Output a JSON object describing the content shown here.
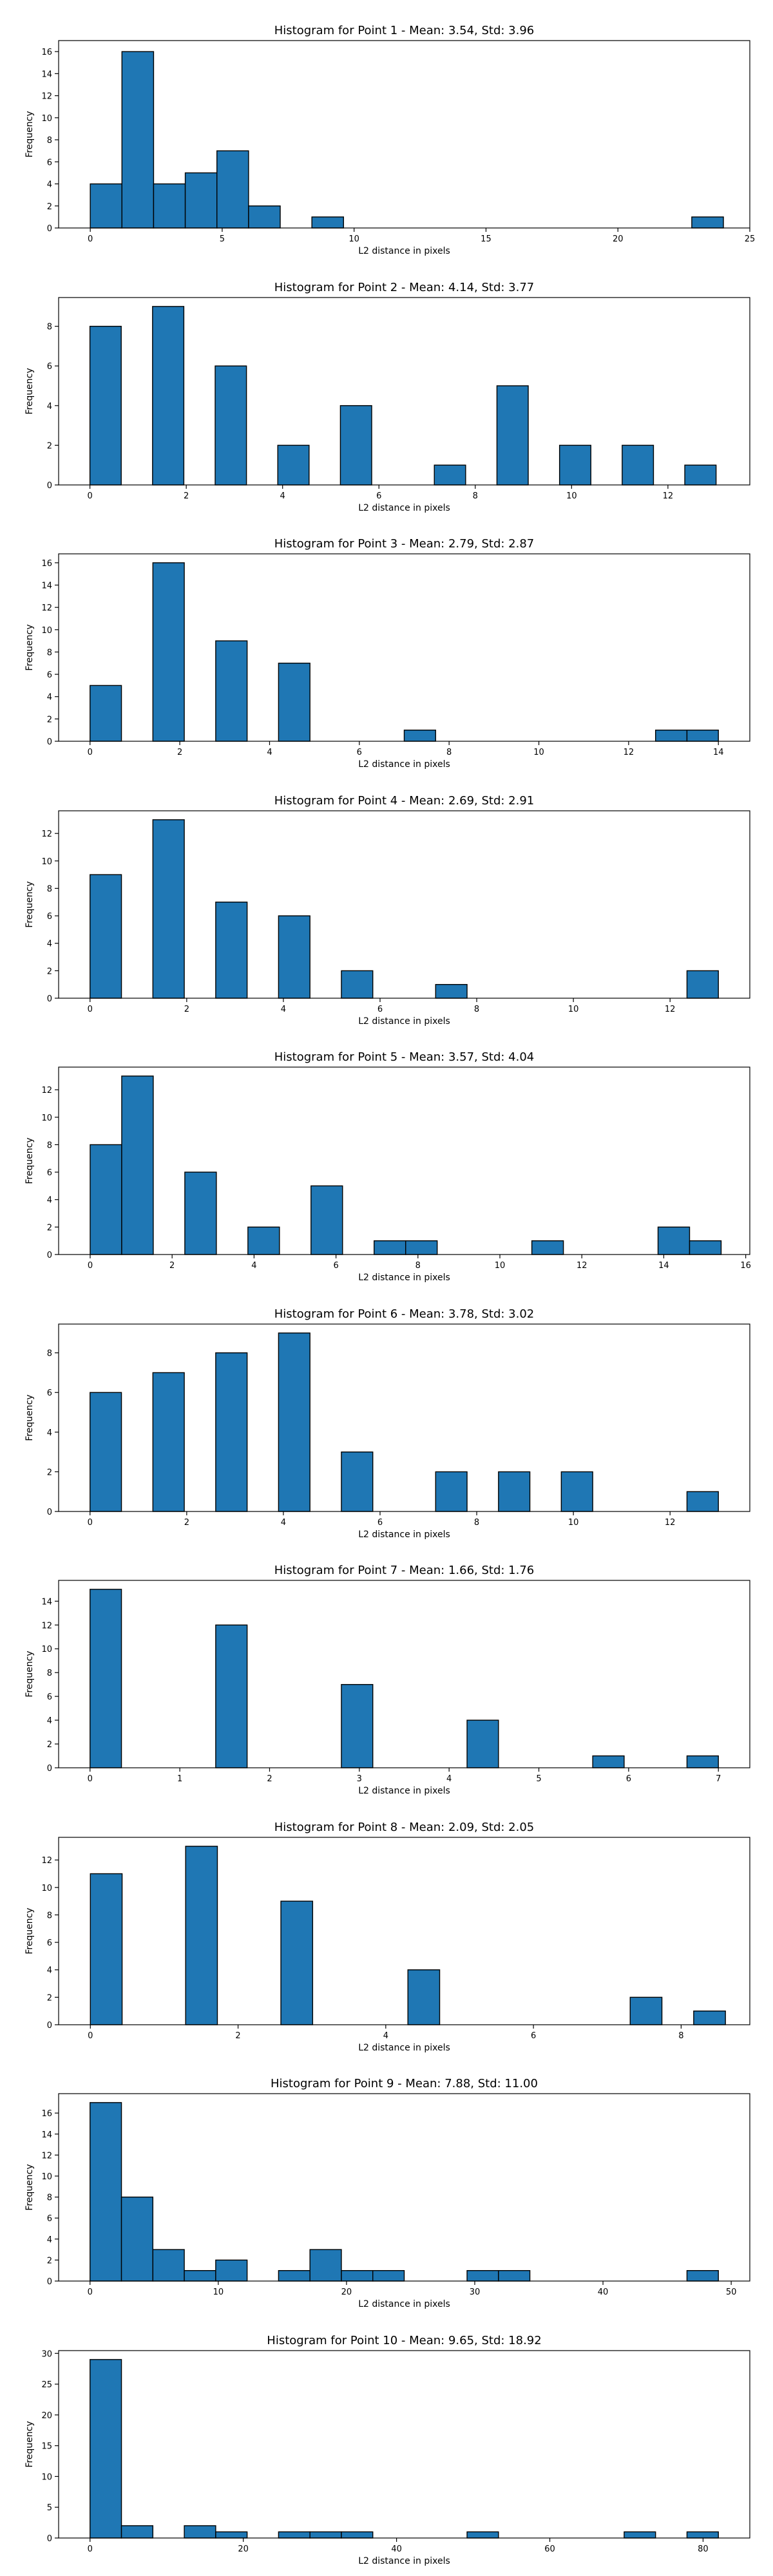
{
  "chart_data": [
    {
      "type": "bar",
      "title": "Histogram for Point 1 - Mean: 3.54, Std: 3.96",
      "xlabel": "L2 distance in pixels",
      "ylabel": "Frequency",
      "xlim": [
        -1.2,
        25.0
      ],
      "ylim": [
        0,
        17
      ],
      "xticks": [
        0,
        5,
        10,
        15,
        20,
        25
      ],
      "xtick_labels": [
        "0",
        "5",
        "10",
        "15",
        "20",
        "25"
      ],
      "yticks": [
        0,
        2,
        4,
        6,
        8,
        10,
        12,
        14,
        16
      ],
      "ytick_labels": [
        "0",
        "2",
        "4",
        "6",
        "8",
        "10",
        "12",
        "14",
        "16"
      ],
      "bins": [
        {
          "x0": 0.0,
          "x1": 1.2,
          "count": 4
        },
        {
          "x0": 1.2,
          "x1": 2.4,
          "count": 16
        },
        {
          "x0": 2.4,
          "x1": 3.6,
          "count": 4
        },
        {
          "x0": 3.6,
          "x1": 4.8,
          "count": 5
        },
        {
          "x0": 4.8,
          "x1": 6.0,
          "count": 7
        },
        {
          "x0": 6.0,
          "x1": 7.2,
          "count": 2
        },
        {
          "x0": 8.4,
          "x1": 9.6,
          "count": 1
        },
        {
          "x0": 22.8,
          "x1": 24.0,
          "count": 1
        }
      ]
    },
    {
      "type": "bar",
      "title": "Histogram for Point 2 - Mean: 4.14, Std: 3.77",
      "xlabel": "L2 distance in pixels",
      "ylabel": "Frequency",
      "xlim": [
        -0.65,
        13.7
      ],
      "ylim": [
        0,
        9.45
      ],
      "xticks": [
        0,
        2,
        4,
        6,
        8,
        10,
        12
      ],
      "xtick_labels": [
        "0",
        "2",
        "4",
        "6",
        "8",
        "10",
        "12"
      ],
      "yticks": [
        0,
        2,
        4,
        6,
        8
      ],
      "ytick_labels": [
        "0",
        "2",
        "4",
        "6",
        "8"
      ],
      "bins": [
        {
          "x0": 0.0,
          "x1": 0.65,
          "count": 8
        },
        {
          "x0": 1.3,
          "x1": 1.95,
          "count": 9
        },
        {
          "x0": 2.6,
          "x1": 3.25,
          "count": 6
        },
        {
          "x0": 3.9,
          "x1": 4.55,
          "count": 2
        },
        {
          "x0": 5.2,
          "x1": 5.85,
          "count": 4
        },
        {
          "x0": 7.15,
          "x1": 7.8,
          "count": 1
        },
        {
          "x0": 8.45,
          "x1": 9.1,
          "count": 5
        },
        {
          "x0": 9.75,
          "x1": 10.4,
          "count": 2
        },
        {
          "x0": 11.05,
          "x1": 11.7,
          "count": 2
        },
        {
          "x0": 12.35,
          "x1": 13.0,
          "count": 1
        }
      ]
    },
    {
      "type": "bar",
      "title": "Histogram for Point 3 - Mean: 2.79, Std: 2.87",
      "xlabel": "L2 distance in pixels",
      "ylabel": "Frequency",
      "xlim": [
        -0.7,
        14.7
      ],
      "ylim": [
        0,
        16.8
      ],
      "xticks": [
        0,
        2,
        4,
        6,
        8,
        10,
        12,
        14
      ],
      "xtick_labels": [
        "0",
        "2",
        "4",
        "6",
        "8",
        "10",
        "12",
        "14"
      ],
      "yticks": [
        0,
        2,
        4,
        6,
        8,
        10,
        12,
        14,
        16
      ],
      "ytick_labels": [
        "0",
        "2",
        "4",
        "6",
        "8",
        "10",
        "12",
        "14",
        "16"
      ],
      "bins": [
        {
          "x0": 0.0,
          "x1": 0.7,
          "count": 5
        },
        {
          "x0": 1.4,
          "x1": 2.1,
          "count": 16
        },
        {
          "x0": 2.8,
          "x1": 3.5,
          "count": 9
        },
        {
          "x0": 3.5,
          "x1": 4.2,
          "count": 0
        },
        {
          "x0": 4.2,
          "x1": 4.9,
          "count": 7
        },
        {
          "x0": 7.0,
          "x1": 7.7,
          "count": 1
        },
        {
          "x0": 12.6,
          "x1": 13.3,
          "count": 1
        },
        {
          "x0": 13.3,
          "x1": 14.0,
          "count": 1
        }
      ]
    },
    {
      "type": "bar",
      "title": "Histogram for Point 4 - Mean: 2.69, Std: 2.91",
      "xlabel": "L2 distance in pixels",
      "ylabel": "Frequency",
      "xlim": [
        -0.65,
        13.65
      ],
      "ylim": [
        0,
        13.65
      ],
      "xticks": [
        0,
        2,
        4,
        6,
        8,
        10,
        12
      ],
      "xtick_labels": [
        "0",
        "2",
        "4",
        "6",
        "8",
        "10",
        "12"
      ],
      "yticks": [
        0,
        2,
        4,
        6,
        8,
        10,
        12
      ],
      "ytick_labels": [
        "0",
        "2",
        "4",
        "6",
        "8",
        "10",
        "12"
      ],
      "bins": [
        {
          "x0": 0.0,
          "x1": 0.65,
          "count": 9
        },
        {
          "x0": 1.3,
          "x1": 1.95,
          "count": 13
        },
        {
          "x0": 2.6,
          "x1": 3.25,
          "count": 7
        },
        {
          "x0": 3.9,
          "x1": 4.55,
          "count": 6
        },
        {
          "x0": 5.2,
          "x1": 5.85,
          "count": 2
        },
        {
          "x0": 7.15,
          "x1": 7.8,
          "count": 1
        },
        {
          "x0": 12.35,
          "x1": 13.0,
          "count": 2
        }
      ]
    },
    {
      "type": "bar",
      "title": "Histogram for Point 5 - Mean: 3.57, Std: 4.04",
      "xlabel": "L2 distance in pixels",
      "ylabel": "Frequency",
      "xlim": [
        -0.77,
        16.1
      ],
      "ylim": [
        0,
        13.65
      ],
      "xticks": [
        0,
        2,
        4,
        6,
        8,
        10,
        12,
        14,
        16
      ],
      "xtick_labels": [
        "0",
        "2",
        "4",
        "6",
        "8",
        "10",
        "12",
        "14",
        "16"
      ],
      "yticks": [
        0,
        2,
        4,
        6,
        8,
        10,
        12
      ],
      "ytick_labels": [
        "0",
        "2",
        "4",
        "6",
        "8",
        "10",
        "12"
      ],
      "bins": [
        {
          "x0": 0.0,
          "x1": 0.77,
          "count": 8
        },
        {
          "x0": 0.77,
          "x1": 1.54,
          "count": 13
        },
        {
          "x0": 2.31,
          "x1": 3.08,
          "count": 6
        },
        {
          "x0": 3.85,
          "x1": 4.62,
          "count": 2
        },
        {
          "x0": 5.39,
          "x1": 6.16,
          "count": 5
        },
        {
          "x0": 6.93,
          "x1": 7.7,
          "count": 1
        },
        {
          "x0": 7.7,
          "x1": 8.47,
          "count": 1
        },
        {
          "x0": 10.78,
          "x1": 11.55,
          "count": 1
        },
        {
          "x0": 13.86,
          "x1": 14.63,
          "count": 2
        },
        {
          "x0": 14.63,
          "x1": 15.4,
          "count": 1
        }
      ]
    },
    {
      "type": "bar",
      "title": "Histogram for Point 6 - Mean: 3.78, Std: 3.02",
      "xlabel": "L2 distance in pixels",
      "ylabel": "Frequency",
      "xlim": [
        -0.65,
        13.65
      ],
      "ylim": [
        0,
        9.45
      ],
      "xticks": [
        0,
        2,
        4,
        6,
        8,
        10,
        12
      ],
      "xtick_labels": [
        "0",
        "2",
        "4",
        "6",
        "8",
        "10",
        "12"
      ],
      "yticks": [
        0,
        2,
        4,
        6,
        8
      ],
      "ytick_labels": [
        "0",
        "2",
        "4",
        "6",
        "8"
      ],
      "bins": [
        {
          "x0": 0.0,
          "x1": 0.65,
          "count": 6
        },
        {
          "x0": 1.3,
          "x1": 1.95,
          "count": 7
        },
        {
          "x0": 2.6,
          "x1": 3.25,
          "count": 8
        },
        {
          "x0": 3.9,
          "x1": 4.55,
          "count": 9
        },
        {
          "x0": 5.2,
          "x1": 5.85,
          "count": 3
        },
        {
          "x0": 7.15,
          "x1": 7.8,
          "count": 2
        },
        {
          "x0": 8.45,
          "x1": 9.1,
          "count": 2
        },
        {
          "x0": 9.75,
          "x1": 10.4,
          "count": 2
        },
        {
          "x0": 12.35,
          "x1": 13.0,
          "count": 1
        }
      ]
    },
    {
      "type": "bar",
      "title": "Histogram for Point 7 - Mean: 1.66, Std: 1.76",
      "xlabel": "L2 distance in pixels",
      "ylabel": "Frequency",
      "xlim": [
        -0.35,
        7.35
      ],
      "ylim": [
        0,
        15.75
      ],
      "xticks": [
        0,
        1,
        2,
        3,
        4,
        5,
        6,
        7
      ],
      "xtick_labels": [
        "0",
        "1",
        "2",
        "3",
        "4",
        "5",
        "6",
        "7"
      ],
      "yticks": [
        0,
        2,
        4,
        6,
        8,
        10,
        12,
        14
      ],
      "ytick_labels": [
        "0",
        "2",
        "4",
        "6",
        "8",
        "10",
        "12",
        "14"
      ],
      "bins": [
        {
          "x0": 0.0,
          "x1": 0.35,
          "count": 15
        },
        {
          "x0": 1.4,
          "x1": 1.75,
          "count": 12
        },
        {
          "x0": 2.8,
          "x1": 3.15,
          "count": 7
        },
        {
          "x0": 4.2,
          "x1": 4.55,
          "count": 4
        },
        {
          "x0": 5.6,
          "x1": 5.95,
          "count": 1
        },
        {
          "x0": 6.65,
          "x1": 7.0,
          "count": 1
        }
      ]
    },
    {
      "type": "bar",
      "title": "Histogram for Point 8 - Mean: 2.09, Std: 2.05",
      "xlabel": "L2 distance in pixels",
      "ylabel": "Frequency",
      "xlim": [
        -0.43,
        8.93
      ],
      "ylim": [
        0,
        13.65
      ],
      "xticks": [
        0,
        2,
        4,
        6,
        8
      ],
      "xtick_labels": [
        "0",
        "2",
        "4",
        "6",
        "8"
      ],
      "yticks": [
        0,
        2,
        4,
        6,
        8,
        10,
        12
      ],
      "ytick_labels": [
        "0",
        "2",
        "4",
        "6",
        "8",
        "10",
        "12"
      ],
      "bins": [
        {
          "x0": 0.0,
          "x1": 0.43,
          "count": 11
        },
        {
          "x0": 1.29,
          "x1": 1.72,
          "count": 13
        },
        {
          "x0": 2.58,
          "x1": 3.01,
          "count": 9
        },
        {
          "x0": 4.3,
          "x1": 4.73,
          "count": 4
        },
        {
          "x0": 7.31,
          "x1": 7.74,
          "count": 2
        },
        {
          "x0": 8.17,
          "x1": 8.6,
          "count": 1
        }
      ]
    },
    {
      "type": "bar",
      "title": "Histogram for Point 9 - Mean: 7.88, Std: 11.00",
      "xlabel": "L2 distance in pixels",
      "ylabel": "Frequency",
      "xlim": [
        -2.45,
        51.45
      ],
      "ylim": [
        0,
        17.85
      ],
      "xticks": [
        0,
        10,
        20,
        30,
        40,
        50
      ],
      "xtick_labels": [
        "0",
        "10",
        "20",
        "30",
        "40",
        "50"
      ],
      "yticks": [
        0,
        2,
        4,
        6,
        8,
        10,
        12,
        14,
        16
      ],
      "ytick_labels": [
        "0",
        "2",
        "4",
        "6",
        "8",
        "10",
        "12",
        "14",
        "16"
      ],
      "bins": [
        {
          "x0": 0.0,
          "x1": 2.45,
          "count": 17
        },
        {
          "x0": 2.45,
          "x1": 4.9,
          "count": 8
        },
        {
          "x0": 4.9,
          "x1": 7.35,
          "count": 3
        },
        {
          "x0": 7.35,
          "x1": 9.8,
          "count": 1
        },
        {
          "x0": 9.8,
          "x1": 12.25,
          "count": 2
        },
        {
          "x0": 14.7,
          "x1": 17.15,
          "count": 1
        },
        {
          "x0": 17.15,
          "x1": 19.6,
          "count": 3
        },
        {
          "x0": 19.6,
          "x1": 22.05,
          "count": 1
        },
        {
          "x0": 22.05,
          "x1": 24.5,
          "count": 1
        },
        {
          "x0": 29.4,
          "x1": 31.85,
          "count": 1
        },
        {
          "x0": 31.85,
          "x1": 34.3,
          "count": 1
        },
        {
          "x0": 46.55,
          "x1": 49.0,
          "count": 1
        }
      ]
    },
    {
      "type": "bar",
      "title": "Histogram for Point 10 - Mean: 9.65, Std: 18.92",
      "xlabel": "L2 distance in pixels",
      "ylabel": "Frequency",
      "xlim": [
        -4.1,
        86.1
      ],
      "ylim": [
        0,
        30.45
      ],
      "xticks": [
        0,
        20,
        40,
        60,
        80
      ],
      "xtick_labels": [
        "0",
        "20",
        "40",
        "60",
        "80"
      ],
      "yticks": [
        0,
        5,
        10,
        15,
        20,
        25,
        30
      ],
      "ytick_labels": [
        "0",
        "5",
        "10",
        "15",
        "20",
        "25",
        "30"
      ],
      "bins": [
        {
          "x0": 0.0,
          "x1": 4.1,
          "count": 29
        },
        {
          "x0": 4.1,
          "x1": 8.2,
          "count": 2
        },
        {
          "x0": 12.3,
          "x1": 16.4,
          "count": 2
        },
        {
          "x0": 16.4,
          "x1": 20.5,
          "count": 1
        },
        {
          "x0": 24.6,
          "x1": 28.7,
          "count": 1
        },
        {
          "x0": 28.7,
          "x1": 32.8,
          "count": 1
        },
        {
          "x0": 32.8,
          "x1": 36.9,
          "count": 1
        },
        {
          "x0": 49.2,
          "x1": 53.3,
          "count": 1
        },
        {
          "x0": 69.7,
          "x1": 73.8,
          "count": 1
        },
        {
          "x0": 77.9,
          "x1": 82.0,
          "count": 1
        }
      ]
    }
  ]
}
